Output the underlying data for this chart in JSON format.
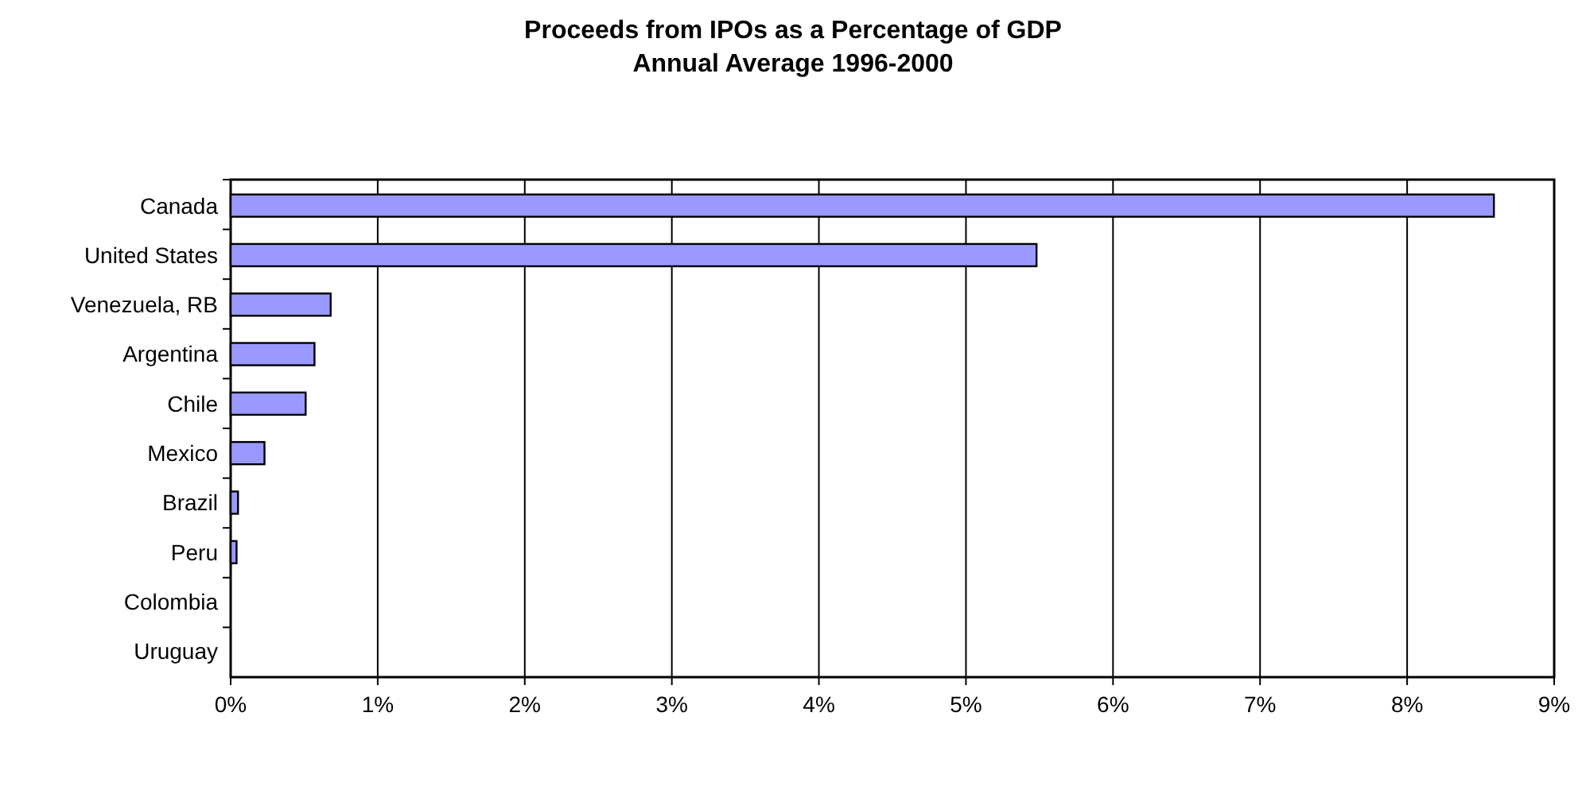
{
  "chart_data": {
    "type": "bar",
    "orientation": "horizontal",
    "title": "Proceeds from IPOs as a Percentage of GDP",
    "subtitle": "Annual Average 1996-2000",
    "categories": [
      "Canada",
      "United States",
      "Venezuela, RB",
      "Argentina",
      "Chile",
      "Mexico",
      "Brazil",
      "Peru",
      "Colombia",
      "Uruguay"
    ],
    "values": [
      8.59,
      5.48,
      0.68,
      0.57,
      0.51,
      0.23,
      0.05,
      0.04,
      0,
      0
    ],
    "color": "#9999ff",
    "xlim": [
      0,
      9
    ],
    "xticks": [
      {
        "value": 0,
        "label": "0%"
      },
      {
        "value": 1,
        "label": "1%"
      },
      {
        "value": 2,
        "label": "2%"
      },
      {
        "value": 3,
        "label": "3%"
      },
      {
        "value": 4,
        "label": "4%"
      },
      {
        "value": 5,
        "label": "5%"
      },
      {
        "value": 6,
        "label": "6%"
      },
      {
        "value": 7,
        "label": "7%"
      },
      {
        "value": 8,
        "label": "8%"
      },
      {
        "value": 9,
        "label": "9%"
      }
    ],
    "grid": "x"
  }
}
